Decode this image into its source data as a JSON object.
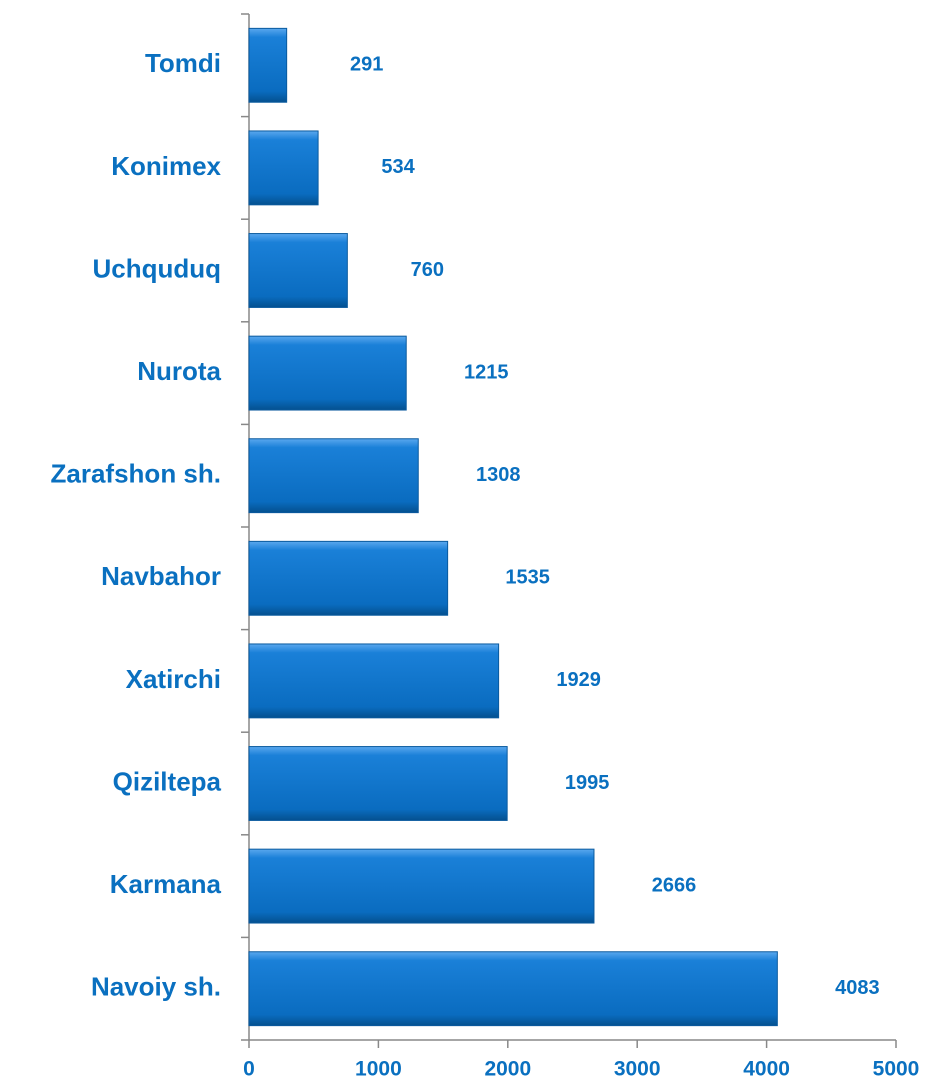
{
  "chart_data": {
    "type": "hbar",
    "categories": [
      "Tomdi",
      "Konimex",
      "Uchquduq",
      "Nurota",
      "Zarafshon sh.",
      "Navbahor",
      "Xatirchi",
      "Qiziltepa",
      "Karmana",
      "Navoiy sh."
    ],
    "values": [
      291,
      534,
      760,
      1215,
      1308,
      1535,
      1929,
      1995,
      2666,
      4083
    ],
    "color": "#0a72c8",
    "xlim": [
      0,
      5000
    ],
    "xticks": [
      0,
      1000,
      2000,
      3000,
      4000,
      5000
    ],
    "grid": false
  }
}
